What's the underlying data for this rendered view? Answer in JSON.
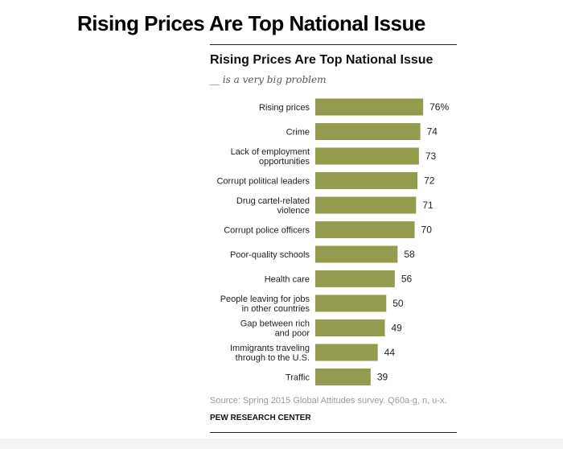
{
  "heading": "Rising Prices Are Top National Issue",
  "chart_data": {
    "type": "bar",
    "orientation": "horizontal",
    "title": "Rising Prices Are Top National Issue",
    "subtitle": "__ is a very big problem",
    "categories": [
      "Rising prices",
      "Crime",
      "Lack of employment\nopportunities",
      "Corrupt political leaders",
      "Drug cartel-related\nviolence",
      "Corrupt police officers",
      "Poor-quality schools",
      "Health care",
      "People leaving for jobs\nin other countries",
      "Gap between rich\nand poor",
      "Immigrants traveling\nthrough to the U.S.",
      "Traffic"
    ],
    "values": [
      76,
      74,
      73,
      72,
      71,
      70,
      58,
      56,
      50,
      49,
      44,
      39
    ],
    "value_labels": [
      "76%",
      "74",
      "73",
      "72",
      "71",
      "70",
      "58",
      "56",
      "50",
      "49",
      "44",
      "39"
    ],
    "bar_color": "#949a4e",
    "xlim": [
      0,
      100
    ]
  },
  "source": "Source: Spring 2015 Global Attitudes survey. Q60a-g, n, u-x.",
  "org": "PEW RESEARCH CENTER"
}
